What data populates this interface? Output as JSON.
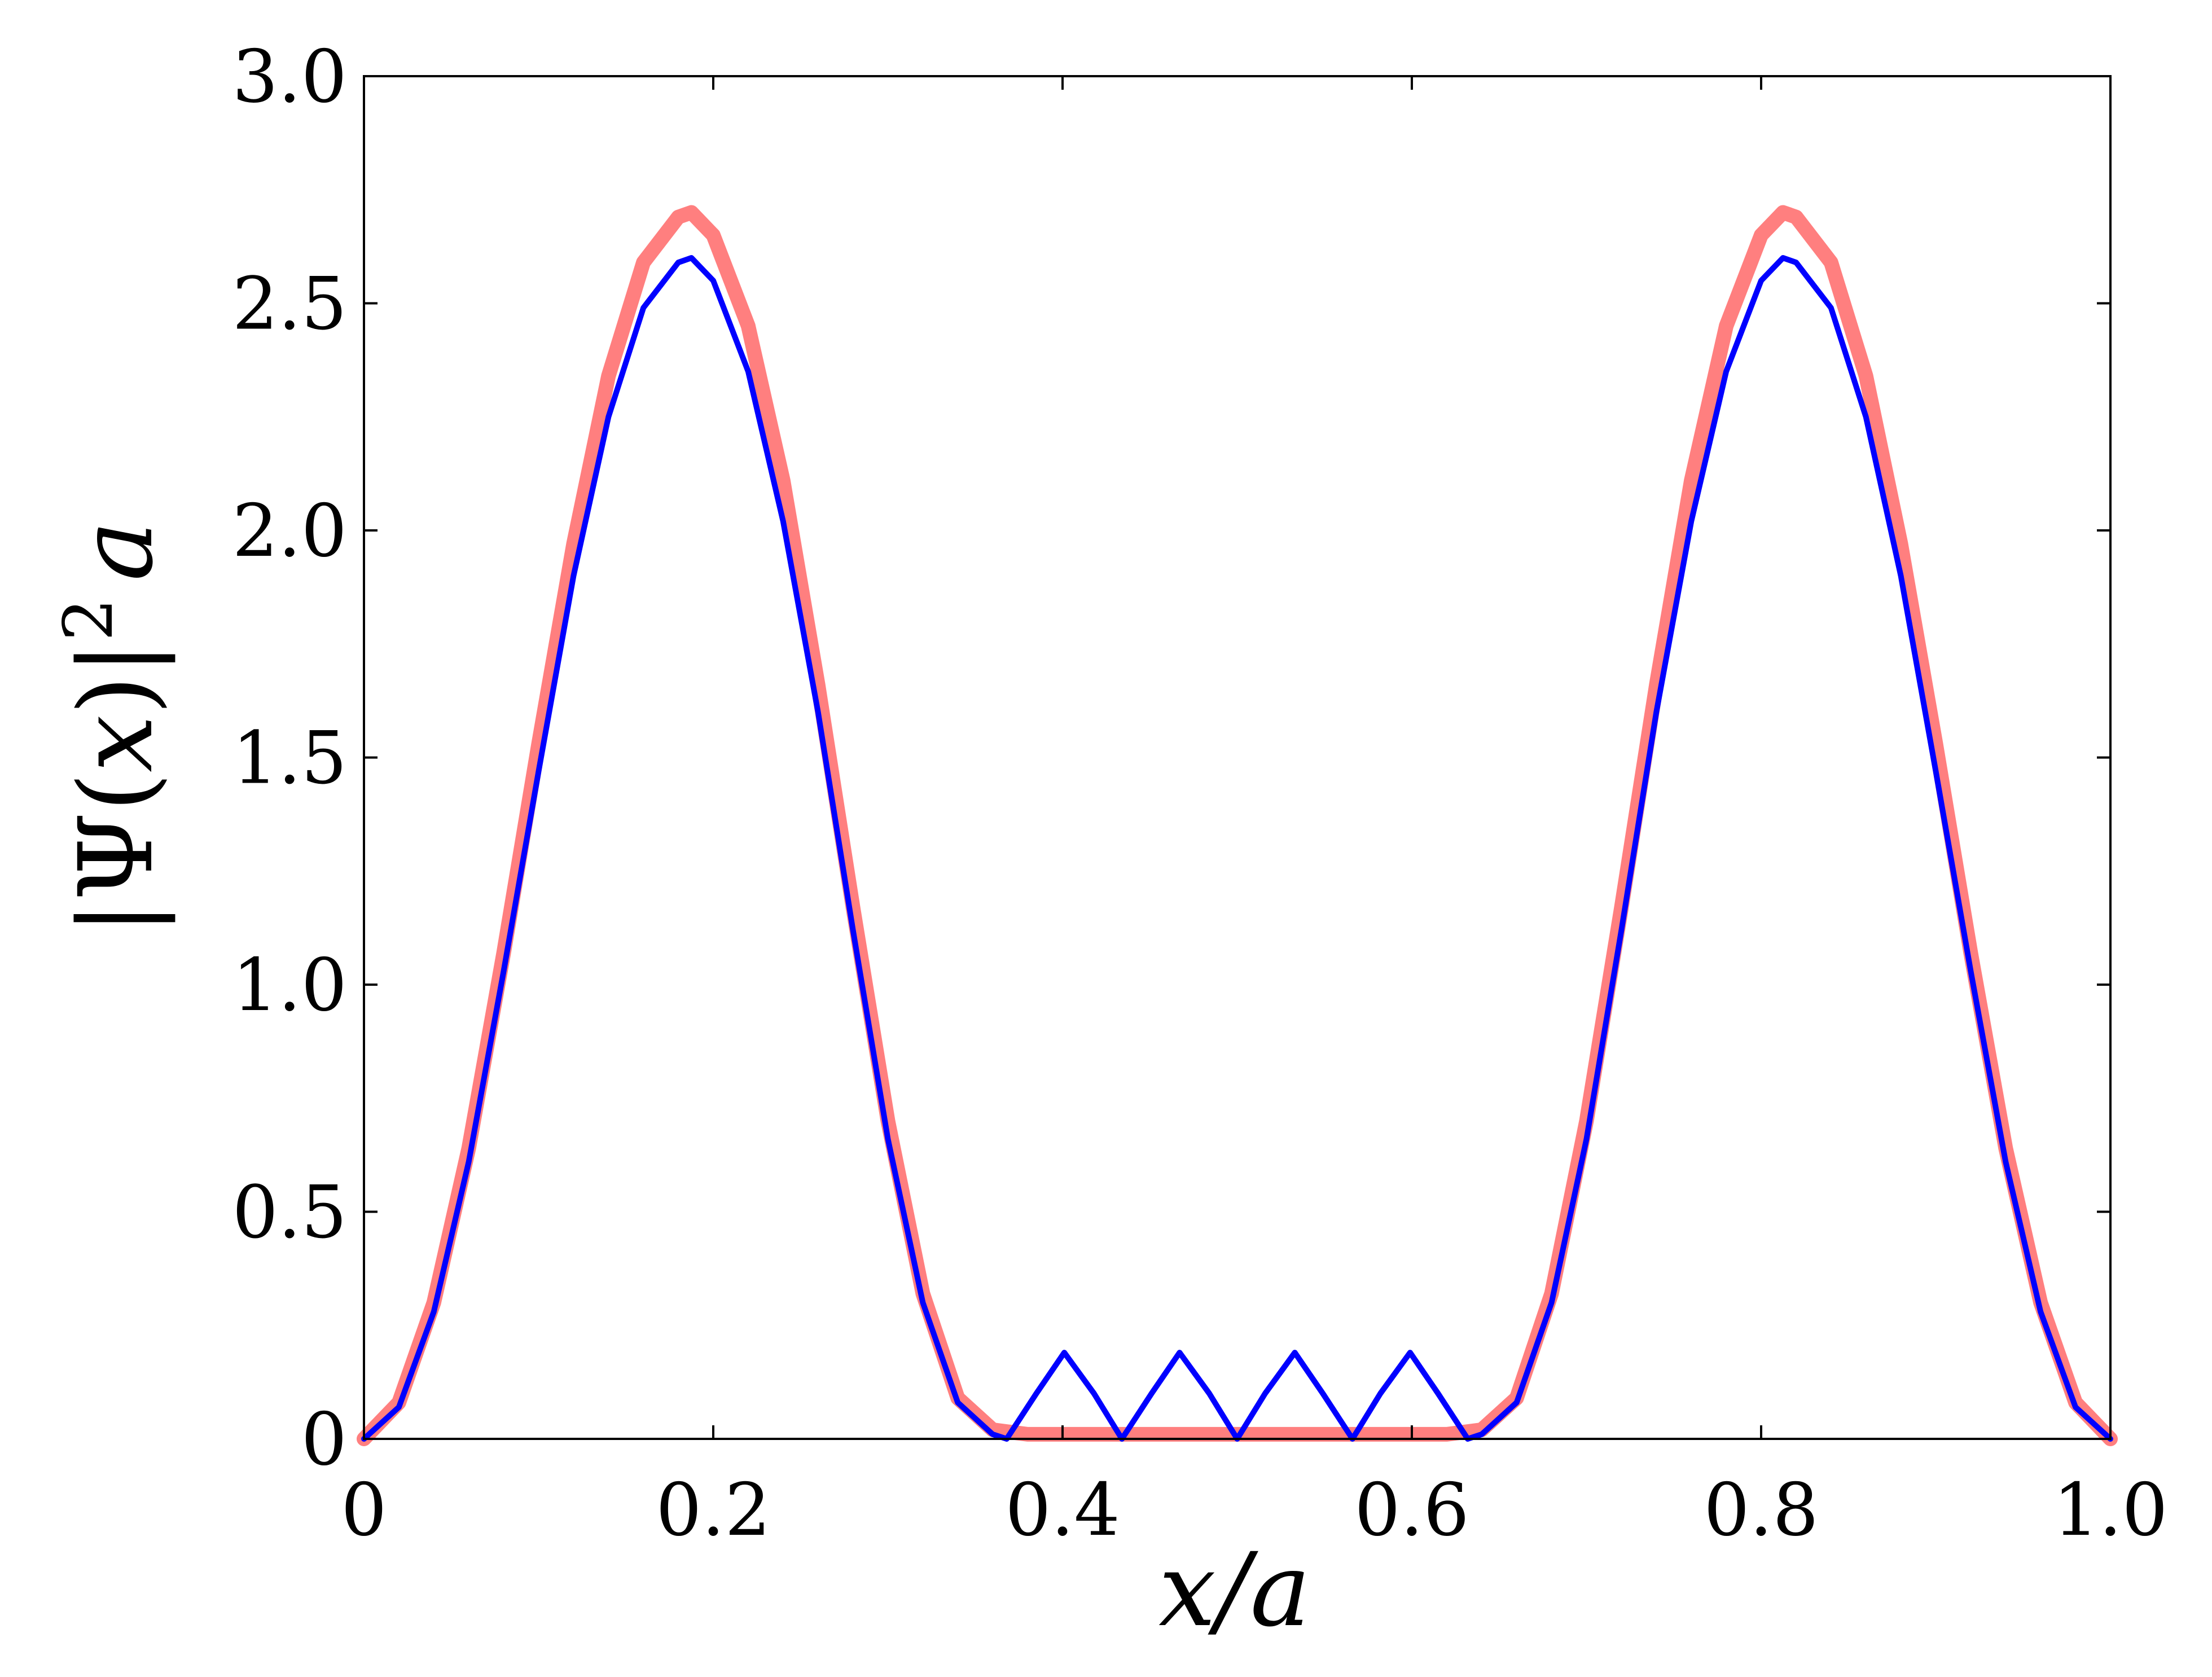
{
  "chart_data": {
    "type": "line",
    "xlabel": "x/a",
    "ylabel": "|Ψ(x)|² a",
    "ylabel_parts": {
      "open": "|Ψ(",
      "var": "x",
      "close": ")|",
      "sup": "2",
      "tail": "a"
    },
    "xlim": [
      0,
      1
    ],
    "ylim": [
      0,
      3
    ],
    "xticks": [
      0,
      0.2,
      0.4,
      0.6,
      0.8,
      1.0
    ],
    "xtick_labels": [
      "0",
      "0.2",
      "0.4",
      "0.6",
      "0.8",
      "1.0"
    ],
    "yticks": [
      0,
      0.5,
      1.0,
      1.5,
      2.0,
      2.5,
      3.0
    ],
    "ytick_labels": [
      "0",
      "0.5",
      "1.0",
      "1.5",
      "2.0",
      "2.5",
      "3.0"
    ],
    "grid": false,
    "series": [
      {
        "color": "#ff7f7f",
        "x": [
          0.0,
          0.02,
          0.04,
          0.06,
          0.08,
          0.1,
          0.12,
          0.14,
          0.16,
          0.18,
          0.1875,
          0.2,
          0.22,
          0.24,
          0.26,
          0.28,
          0.3,
          0.32,
          0.34,
          0.36,
          0.38,
          0.4,
          0.45,
          0.5,
          0.55,
          0.6,
          0.62,
          0.64,
          0.66,
          0.68,
          0.7,
          0.72,
          0.74,
          0.76,
          0.78,
          0.8,
          0.8125,
          0.82,
          0.84,
          0.86,
          0.88,
          0.9,
          0.92,
          0.94,
          0.96,
          0.98,
          1.0
        ],
        "y": [
          0.0,
          0.08,
          0.3,
          0.64,
          1.07,
          1.53,
          1.97,
          2.34,
          2.59,
          2.69,
          2.7,
          2.65,
          2.45,
          2.11,
          1.66,
          1.17,
          0.7,
          0.32,
          0.09,
          0.02,
          0.01,
          0.01,
          0.01,
          0.01,
          0.01,
          0.01,
          0.01,
          0.02,
          0.09,
          0.32,
          0.7,
          1.17,
          1.66,
          2.11,
          2.45,
          2.65,
          2.7,
          2.69,
          2.59,
          2.34,
          1.97,
          1.53,
          1.07,
          0.64,
          0.3,
          0.08,
          0.0
        ]
      },
      {
        "color": "#0000ff",
        "x": [
          0.0,
          0.02,
          0.04,
          0.06,
          0.08,
          0.1,
          0.12,
          0.14,
          0.16,
          0.18,
          0.1875,
          0.2,
          0.22,
          0.24,
          0.26,
          0.28,
          0.3,
          0.32,
          0.34,
          0.36,
          0.368,
          0.385,
          0.401,
          0.418,
          0.434,
          0.451,
          0.467,
          0.484,
          0.5,
          0.516,
          0.533,
          0.549,
          0.566,
          0.582,
          0.599,
          0.615,
          0.632,
          0.64,
          0.66,
          0.68,
          0.7,
          0.72,
          0.74,
          0.76,
          0.78,
          0.8,
          0.8125,
          0.82,
          0.84,
          0.86,
          0.88,
          0.9,
          0.92,
          0.94,
          0.96,
          0.98,
          1.0
        ],
        "y": [
          0.0,
          0.07,
          0.28,
          0.61,
          1.03,
          1.47,
          1.9,
          2.25,
          2.49,
          2.59,
          2.6,
          2.55,
          2.35,
          2.02,
          1.6,
          1.12,
          0.66,
          0.3,
          0.08,
          0.01,
          0.0,
          0.1,
          0.19,
          0.1,
          0.0,
          0.1,
          0.19,
          0.1,
          0.0,
          0.1,
          0.19,
          0.1,
          0.0,
          0.1,
          0.19,
          0.1,
          0.0,
          0.01,
          0.08,
          0.3,
          0.66,
          1.12,
          1.6,
          2.02,
          2.35,
          2.55,
          2.6,
          2.59,
          2.49,
          2.25,
          1.9,
          1.47,
          1.03,
          0.61,
          0.28,
          0.07,
          0.0
        ]
      }
    ]
  }
}
